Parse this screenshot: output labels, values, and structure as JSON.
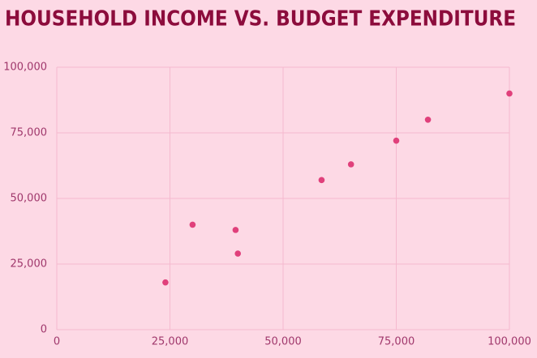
{
  "chart_data": {
    "type": "scatter",
    "title": "HOUSEHOLD INCOME VS. BUDGET EXPENDITURE",
    "x": [
      24000,
      30000,
      39500,
      40000,
      58500,
      65000,
      75000,
      82000,
      100000
    ],
    "y": [
      18000,
      40000,
      38000,
      29000,
      57000,
      63000,
      72000,
      80000,
      90000
    ],
    "color": "#e0407b",
    "xlim": [
      0,
      100000
    ],
    "xticks": [
      0,
      {
        "value": 25000,
        "label": "25,000"
      },
      {
        "value": 50000,
        "label": "50,000"
      },
      {
        "value": 75000,
        "label": "75,000"
      },
      {
        "value": 100000,
        "label": "100,000"
      }
    ],
    "ylim": [
      0,
      100000
    ],
    "yticks": [
      0,
      {
        "value": 25000,
        "label": "25,000"
      },
      {
        "value": 50000,
        "label": "50,000"
      },
      {
        "value": 75000,
        "label": "75,000"
      },
      {
        "value": 100000,
        "label": "100,000"
      }
    ],
    "grid": true
  }
}
